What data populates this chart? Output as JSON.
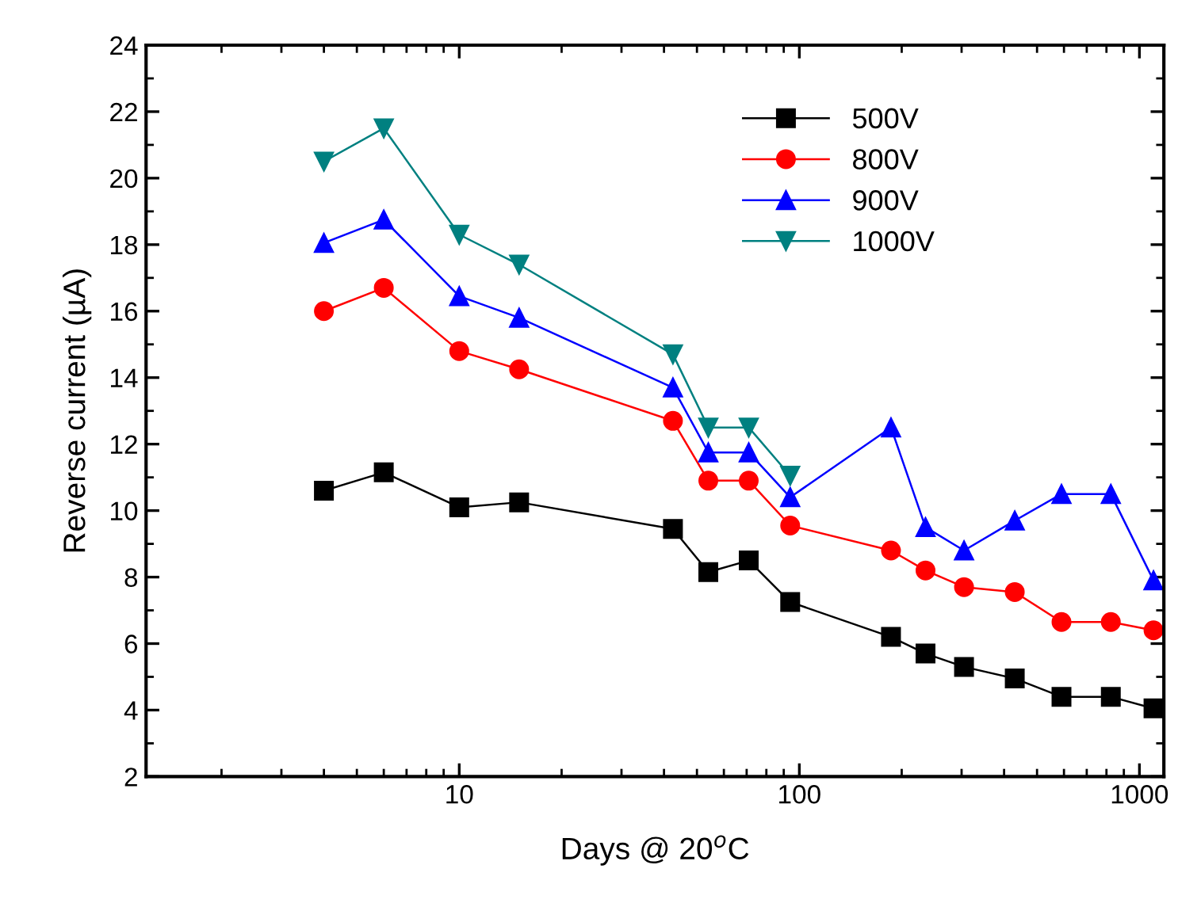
{
  "chart_data": {
    "type": "line",
    "xlabel": "Days @ 20$^{o}$C",
    "ylabel": "Reverse current (µA)",
    "log": "x",
    "xlim": [
      1.2,
      1180
    ],
    "xticks": [
      10,
      100,
      1000
    ],
    "ylim": [
      2,
      24
    ],
    "yticks": [
      2,
      4,
      6,
      8,
      10,
      12,
      14,
      16,
      18,
      20,
      22,
      24
    ],
    "legend": "top right",
    "grid": false,
    "x": [
      4,
      6,
      10,
      15,
      42.5,
      54,
      71,
      94,
      186,
      235,
      305,
      430,
      590,
      824,
      1100
    ],
    "series": [
      {
        "name": "500V",
        "color": "#000000",
        "marker": "square",
        "values": [
          10.6,
          11.15,
          10.1,
          10.25,
          9.45,
          8.15,
          8.5,
          7.25,
          6.2,
          5.7,
          5.3,
          4.95,
          4.4,
          4.4,
          4.05
        ]
      },
      {
        "name": "800V",
        "color": "#ff0000",
        "marker": "circle",
        "values": [
          16.0,
          16.7,
          14.8,
          14.25,
          12.7,
          10.9,
          10.9,
          9.55,
          8.8,
          8.2,
          7.7,
          7.55,
          6.65,
          6.65,
          6.4
        ]
      },
      {
        "name": "900V",
        "color": "#0000ff",
        "marker": "triangle",
        "values": [
          18.05,
          18.75,
          16.45,
          15.8,
          13.7,
          11.75,
          11.75,
          10.4,
          12.5,
          9.5,
          8.8,
          9.7,
          10.5,
          10.5,
          7.9
        ]
      },
      {
        "name": "1000V",
        "color": "#008080",
        "marker": "triangle_down",
        "x": [
          4,
          6,
          10,
          15,
          42.5,
          54,
          71,
          94
        ],
        "values": [
          20.5,
          21.5,
          18.3,
          17.4,
          14.7,
          12.5,
          12.5,
          11.05
        ]
      }
    ]
  }
}
